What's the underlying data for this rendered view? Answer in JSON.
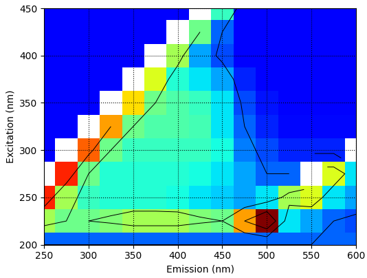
{
  "chart_data": {
    "type": "heatmap",
    "xlabel": "Emission (nm)",
    "ylabel": "Excitation (nm)",
    "xlim": [
      250,
      600
    ],
    "ylim": [
      200,
      450
    ],
    "xticks": [
      250,
      300,
      350,
      400,
      450,
      500,
      550,
      600
    ],
    "yticks": [
      200,
      250,
      300,
      350,
      400,
      450
    ],
    "grid": true,
    "x": [
      250,
      275,
      300,
      325,
      350,
      375,
      400,
      425,
      450,
      475,
      500,
      525,
      550,
      575,
      600
    ],
    "y": [
      200,
      225,
      250,
      275,
      300,
      325,
      350,
      375,
      400,
      425,
      450
    ],
    "cells": [
      [
        0.2,
        0.2,
        0.2,
        0.2,
        0.2,
        0.2,
        0.2,
        0.2,
        0.2,
        0.2,
        0.2,
        0.2,
        0.2,
        0.2,
        0.2
      ],
      [
        0.45,
        0.4,
        0.4,
        0.42,
        0.45,
        0.45,
        0.45,
        0.42,
        0.4,
        0.6,
        0.8,
        0.3,
        0.25,
        0.2,
        0.18
      ],
      [
        0.7,
        0.45,
        0.35,
        0.33,
        0.33,
        0.33,
        0.32,
        0.3,
        0.28,
        0.25,
        0.3,
        0.45,
        0.5,
        0.3,
        0.25
      ],
      [
        null,
        0.7,
        0.4,
        0.33,
        0.33,
        0.33,
        0.33,
        0.32,
        0.3,
        0.25,
        0.2,
        0.2,
        null,
        0.5,
        0.3
      ],
      [
        0.12,
        null,
        0.65,
        0.4,
        0.35,
        0.35,
        0.35,
        0.35,
        0.32,
        0.22,
        0.18,
        0.15,
        0.15,
        0.15,
        null
      ],
      [
        0.12,
        0.12,
        null,
        0.6,
        0.4,
        0.37,
        0.37,
        0.36,
        0.3,
        0.2,
        0.15,
        0.13,
        0.13,
        0.13,
        0.13
      ],
      [
        0.12,
        0.12,
        0.12,
        null,
        0.55,
        0.4,
        0.37,
        0.35,
        0.3,
        0.18,
        0.14,
        0.12,
        0.12,
        0.12,
        0.12
      ],
      [
        0.12,
        0.12,
        0.12,
        0.12,
        null,
        0.5,
        0.33,
        0.3,
        0.25,
        0.15,
        0.12,
        0.12,
        0.12,
        0.12,
        0.12
      ],
      [
        0.12,
        0.12,
        0.12,
        0.12,
        0.12,
        null,
        0.45,
        0.25,
        0.18,
        0.12,
        0.12,
        0.12,
        0.12,
        0.12,
        0.12
      ],
      [
        0.12,
        0.12,
        0.12,
        0.12,
        0.12,
        0.12,
        null,
        0.4,
        0.2,
        0.12,
        0.12,
        0.12,
        0.12,
        0.12,
        0.12
      ],
      [
        0.12,
        0.12,
        0.12,
        0.12,
        0.12,
        0.12,
        0.12,
        null,
        0.35,
        0.12,
        0.12,
        0.12,
        0.12,
        0.12,
        0.12
      ]
    ]
  }
}
